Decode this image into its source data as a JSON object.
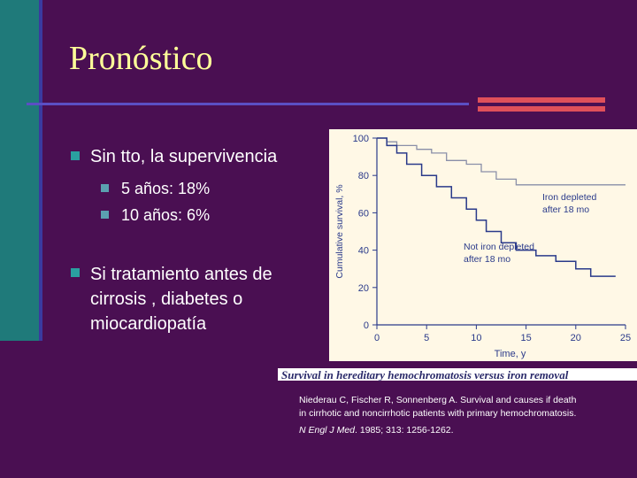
{
  "slide": {
    "title": "Pronóstico",
    "bullets": [
      {
        "text": "Sin tto, la supervivencia",
        "sub": [
          "5 años: 18%",
          "10 años: 6%"
        ]
      },
      {
        "lines": [
          "Si tratamiento antes de",
          "cirrosis , diabetes o",
          "miocardiopatía"
        ]
      }
    ]
  },
  "figure": {
    "caption": "Survival in hereditary hemochromatosis versus iron removal",
    "reference_line1": "Niederau C, Fischer R, Sonnenberg A. Survival and causes if death",
    "reference_line2": "in cirrhotic and noncirrhotic patients with primary hemochromatosis.",
    "reference_journal": "N Engl J Med",
    "reference_rest": ". 1985; 313: 1256-1262."
  },
  "chart_data": {
    "type": "line",
    "xlabel": "Time, y",
    "ylabel": "Cumulative survival, %",
    "xlim": [
      0,
      25
    ],
    "ylim": [
      0,
      100
    ],
    "x_ticks": [
      0,
      5,
      10,
      15,
      20,
      25
    ],
    "y_ticks": [
      0,
      20,
      40,
      60,
      80,
      100
    ],
    "series": [
      {
        "name": "Iron depleted after 18 mo",
        "label_lines": [
          "Iron depleted",
          "after 18 mo"
        ],
        "x": [
          0,
          1,
          1,
          2,
          2,
          4,
          4,
          5.5,
          5.5,
          7,
          7,
          9,
          9,
          10.5,
          10.5,
          12,
          12,
          14,
          14,
          25
        ],
        "y": [
          100,
          100,
          98,
          98,
          96,
          96,
          94,
          94,
          92,
          92,
          88,
          88,
          86,
          86,
          82,
          82,
          78,
          78,
          75,
          75
        ]
      },
      {
        "name": "Not iron depleted after 18 mo",
        "label_lines": [
          "Not iron depleted",
          "after 18 mo"
        ],
        "x": [
          0,
          1,
          1,
          2,
          2,
          3,
          3,
          4.5,
          4.5,
          6,
          6,
          7.5,
          7.5,
          9,
          9,
          10,
          10,
          11,
          11,
          12.5,
          12.5,
          14,
          14,
          16,
          16,
          18,
          18,
          20,
          20,
          21.5,
          21.5,
          24
        ],
        "y": [
          100,
          100,
          96,
          96,
          92,
          92,
          86,
          86,
          80,
          80,
          74,
          74,
          68,
          68,
          62,
          62,
          56,
          56,
          50,
          50,
          44,
          44,
          40,
          40,
          37,
          37,
          34,
          34,
          30,
          30,
          26,
          26
        ]
      }
    ]
  }
}
